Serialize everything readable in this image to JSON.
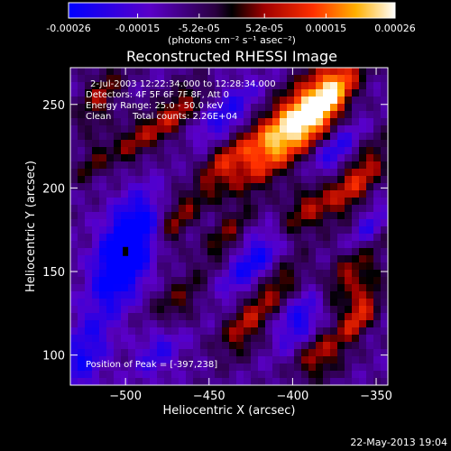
{
  "chart_data": {
    "type": "heatmap",
    "title": "Reconstructed RHESSI Image",
    "xlabel": "Heliocentric X (arcsec)",
    "ylabel": "Heliocentric Y (arcsec)",
    "xlim": [
      -533,
      -343
    ],
    "ylim": [
      82,
      272
    ],
    "xticks": [
      -500,
      -450,
      -400,
      -350
    ],
    "yticks": [
      100,
      150,
      200,
      250
    ],
    "colorbar": {
      "label": "(photons cm⁻² s⁻¹ asec⁻²)",
      "ticks": [
        "-0.00026",
        "-0.00015",
        "-5.2e-05",
        "5.2e-05",
        "0.00015",
        "0.00026"
      ],
      "tick_values": [
        -0.00026,
        -0.00015,
        -5.2e-05,
        5.2e-05,
        0.00015,
        0.00026
      ],
      "range": [
        -0.00026,
        0.00026
      ]
    },
    "annotations": {
      "time_range": "2-Jul-2003 12:22:34.000 to 12:28:34.000",
      "detectors": "Detectors: 4F 5F 6F 7F 8F, Att 0",
      "energy": "Energy Range: 25.0 - 50.0 keV",
      "clean_label": "Clean",
      "counts": "Total counts: 2.26E+04",
      "peak": "Position of Peak = [-397,238]"
    },
    "peak": [
      -397,
      238
    ],
    "min_marker": [
      -500,
      162
    ],
    "blobs": [
      {
        "x": -400,
        "y": 238,
        "amp": 1.0,
        "sx": 10,
        "sy": 30,
        "rot": 40
      },
      {
        "x": -378,
        "y": 252,
        "amp": 0.6,
        "sx": 7,
        "sy": 18,
        "rot": 35
      },
      {
        "x": -445,
        "y": 215,
        "amp": 0.55,
        "sx": 9,
        "sy": 22,
        "rot": 45
      },
      {
        "x": -470,
        "y": 245,
        "amp": 0.45,
        "sx": 7,
        "sy": 16,
        "rot": 40
      },
      {
        "x": -515,
        "y": 255,
        "amp": 0.4,
        "sx": 7,
        "sy": 16,
        "rot": 30
      },
      {
        "x": -495,
        "y": 228,
        "amp": 0.35,
        "sx": 7,
        "sy": 14,
        "rot": 40
      },
      {
        "x": -360,
        "y": 205,
        "amp": 0.5,
        "sx": 7,
        "sy": 20,
        "rot": 35
      },
      {
        "x": -395,
        "y": 185,
        "amp": 0.5,
        "sx": 8,
        "sy": 22,
        "rot": 45
      },
      {
        "x": -440,
        "y": 170,
        "amp": 0.35,
        "sx": 6,
        "sy": 14,
        "rot": 40
      },
      {
        "x": -470,
        "y": 180,
        "amp": 0.35,
        "sx": 6,
        "sy": 14,
        "rot": 30
      },
      {
        "x": -365,
        "y": 150,
        "amp": 0.45,
        "sx": 7,
        "sy": 18,
        "rot": 40
      },
      {
        "x": -360,
        "y": 125,
        "amp": 0.6,
        "sx": 6,
        "sy": 14,
        "rot": 30
      },
      {
        "x": -410,
        "y": 140,
        "amp": 0.4,
        "sx": 7,
        "sy": 16,
        "rot": 45
      },
      {
        "x": -470,
        "y": 130,
        "amp": 0.35,
        "sx": 8,
        "sy": 16,
        "rot": 40
      },
      {
        "x": -430,
        "y": 115,
        "amp": 0.4,
        "sx": 8,
        "sy": 14,
        "rot": 35
      },
      {
        "x": -385,
        "y": 100,
        "amp": 0.45,
        "sx": 9,
        "sy": 12,
        "rot": 40
      },
      {
        "x": -520,
        "y": 215,
        "amp": 0.3,
        "sx": 5,
        "sy": 12,
        "rot": 35
      },
      {
        "x": -500,
        "y": 162,
        "amp": -0.95,
        "sx": 10,
        "sy": 22,
        "rot": 20
      },
      {
        "x": -420,
        "y": 160,
        "amp": -0.55,
        "sx": 8,
        "sy": 20,
        "rot": 40
      },
      {
        "x": -440,
        "y": 240,
        "amp": -0.45,
        "sx": 8,
        "sy": 18,
        "rot": 40
      },
      {
        "x": -375,
        "y": 220,
        "amp": -0.4,
        "sx": 6,
        "sy": 14,
        "rot": 40
      },
      {
        "x": -395,
        "y": 120,
        "amp": -0.45,
        "sx": 8,
        "sy": 14,
        "rot": 30
      },
      {
        "x": -525,
        "y": 100,
        "amp": -0.4,
        "sx": 9,
        "sy": 18,
        "rot": 20
      },
      {
        "x": -480,
        "y": 105,
        "amp": -0.35,
        "sx": 8,
        "sy": 14,
        "rot": 30
      },
      {
        "x": -355,
        "y": 175,
        "amp": -0.35,
        "sx": 5,
        "sy": 12,
        "rot": 30
      },
      {
        "x": -460,
        "y": 205,
        "amp": -0.3,
        "sx": 5,
        "sy": 12,
        "rot": 40
      }
    ]
  },
  "footer": {
    "timestamp": "22-May-2013 19:04"
  }
}
